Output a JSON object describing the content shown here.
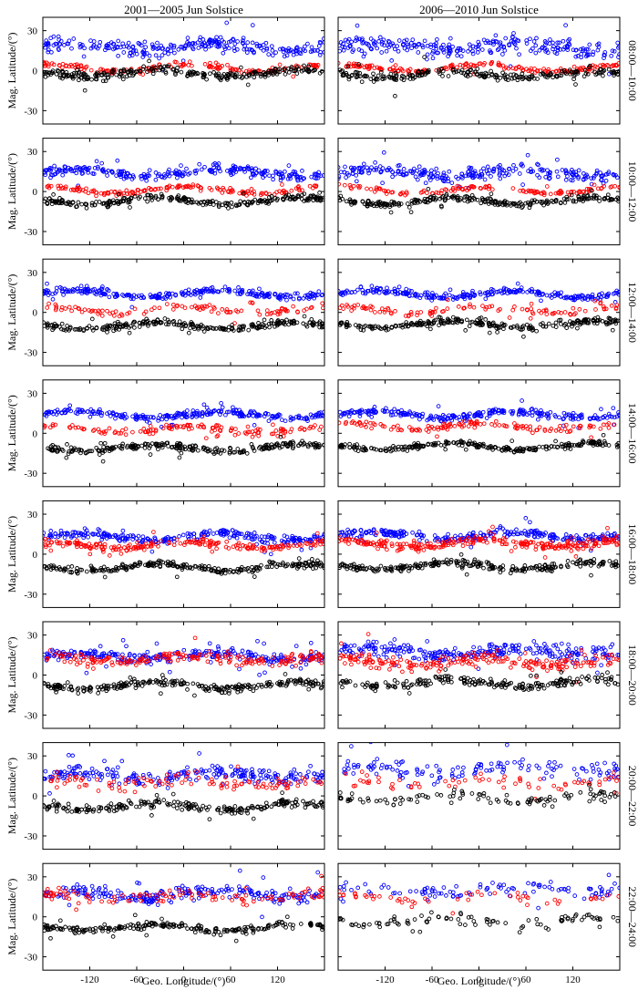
{
  "figure": {
    "column_titles": [
      "2001—2005 Jun Solstice",
      "2006—2010 Jun Solstice"
    ],
    "row_labels": [
      "08:00—10:00",
      "10:00—12:00",
      "12:00—14:00",
      "14:00—16:00",
      "16:00—18:00",
      "18:00—20:00",
      "20:00—22:00",
      "22:00—24:00"
    ],
    "ylabel": "Mag. Latitude/(°)",
    "xlabel": "Geo. Longitude/(°)",
    "xticks": [
      -120,
      -60,
      0,
      60,
      120
    ],
    "yticks": [
      30,
      0,
      -30
    ]
  },
  "chart_data": {
    "type": "scatter",
    "layout": "8 rows x 2 columns",
    "xlabel": "Geo. Longitude/(°)",
    "ylabel": "Mag. Latitude/(°)",
    "xlim": [
      -180,
      180
    ],
    "ylim": [
      -40,
      40
    ],
    "xticks": [
      -120,
      -60,
      0,
      60,
      120
    ],
    "yticks": [
      -30,
      0,
      30
    ],
    "marker": "open circle",
    "series_colors": [
      "#0000ff",
      "#ff0000",
      "#000000"
    ],
    "panels": [
      {
        "column": "2001—2005 Jun Solstice",
        "row": "08:00—10:00",
        "bands": [
          {
            "color": "#0000ff",
            "center": 18,
            "spread": 9,
            "density": 1.0
          },
          {
            "color": "#ff0000",
            "center": 2,
            "spread": 3,
            "density": 0.6
          },
          {
            "color": "#000000",
            "center": -2,
            "spread": 5,
            "density": 1.0
          }
        ]
      },
      {
        "column": "2006—2010 Jun Solstice",
        "row": "08:00—10:00",
        "bands": [
          {
            "color": "#0000ff",
            "center": 18,
            "spread": 11,
            "density": 1.0
          },
          {
            "color": "#ff0000",
            "center": 2,
            "spread": 3,
            "density": 0.7
          },
          {
            "color": "#000000",
            "center": -3,
            "spread": 5,
            "density": 0.9
          }
        ]
      },
      {
        "column": "2001—2005 Jun Solstice",
        "row": "10:00—12:00",
        "bands": [
          {
            "color": "#0000ff",
            "center": 14,
            "spread": 6,
            "density": 1.0
          },
          {
            "color": "#ff0000",
            "center": 1,
            "spread": 3,
            "density": 0.6
          },
          {
            "color": "#000000",
            "center": -7,
            "spread": 4,
            "density": 1.0
          }
        ]
      },
      {
        "column": "2006—2010 Jun Solstice",
        "row": "10:00—12:00",
        "bands": [
          {
            "color": "#0000ff",
            "center": 14,
            "spread": 7,
            "density": 1.0
          },
          {
            "color": "#ff0000",
            "center": 1,
            "spread": 3,
            "density": 0.5
          },
          {
            "color": "#000000",
            "center": -7,
            "spread": 4,
            "density": 1.0
          }
        ]
      },
      {
        "column": "2001—2005 Jun Solstice",
        "row": "12:00—14:00",
        "bands": [
          {
            "color": "#0000ff",
            "center": 14,
            "spread": 4,
            "density": 1.0
          },
          {
            "color": "#ff0000",
            "center": 2,
            "spread": 4,
            "density": 0.4
          },
          {
            "color": "#000000",
            "center": -10,
            "spread": 4,
            "density": 1.0
          }
        ]
      },
      {
        "column": "2006—2010 Jun Solstice",
        "row": "12:00—14:00",
        "bands": [
          {
            "color": "#0000ff",
            "center": 14,
            "spread": 4,
            "density": 1.0
          },
          {
            "color": "#ff0000",
            "center": 2,
            "spread": 4,
            "density": 0.4
          },
          {
            "color": "#000000",
            "center": -9,
            "spread": 4,
            "density": 1.0
          }
        ]
      },
      {
        "column": "2001—2005 Jun Solstice",
        "row": "14:00—16:00",
        "bands": [
          {
            "color": "#0000ff",
            "center": 14,
            "spread": 4,
            "density": 1.0
          },
          {
            "color": "#ff0000",
            "center": 3,
            "spread": 4,
            "density": 0.5
          },
          {
            "color": "#000000",
            "center": -11,
            "spread": 4,
            "density": 1.0
          }
        ]
      },
      {
        "column": "2006—2010 Jun Solstice",
        "row": "14:00—16:00",
        "bands": [
          {
            "color": "#0000ff",
            "center": 14,
            "spread": 4,
            "density": 1.0
          },
          {
            "color": "#ff0000",
            "center": 5,
            "spread": 4,
            "density": 0.5
          },
          {
            "color": "#000000",
            "center": -10,
            "spread": 3,
            "density": 1.0
          }
        ]
      },
      {
        "column": "2001—2005 Jun Solstice",
        "row": "16:00—18:00",
        "bands": [
          {
            "color": "#0000ff",
            "center": 13,
            "spread": 5,
            "density": 1.0
          },
          {
            "color": "#ff0000",
            "center": 7,
            "spread": 5,
            "density": 0.8
          },
          {
            "color": "#000000",
            "center": -10,
            "spread": 4,
            "density": 1.0
          }
        ]
      },
      {
        "column": "2006—2010 Jun Solstice",
        "row": "16:00—18:00",
        "bands": [
          {
            "color": "#0000ff",
            "center": 14,
            "spread": 5,
            "density": 1.0
          },
          {
            "color": "#ff0000",
            "center": 8,
            "spread": 5,
            "density": 1.0
          },
          {
            "color": "#000000",
            "center": -9,
            "spread": 4,
            "density": 1.0
          }
        ]
      },
      {
        "column": "2001—2005 Jun Solstice",
        "row": "18:00—20:00",
        "bands": [
          {
            "color": "#0000ff",
            "center": 14,
            "spread": 6,
            "density": 1.0
          },
          {
            "color": "#ff0000",
            "center": 12,
            "spread": 7,
            "density": 0.7
          },
          {
            "color": "#000000",
            "center": -8,
            "spread": 4,
            "density": 1.0
          }
        ]
      },
      {
        "column": "2006—2010 Jun Solstice",
        "row": "18:00—20:00",
        "bands": [
          {
            "color": "#0000ff",
            "center": 17,
            "spread": 9,
            "density": 1.0
          },
          {
            "color": "#ff0000",
            "center": 10,
            "spread": 8,
            "density": 0.8
          },
          {
            "color": "#000000",
            "center": -6,
            "spread": 5,
            "density": 0.8
          }
        ]
      },
      {
        "column": "2001—2005 Jun Solstice",
        "row": "20:00—22:00",
        "bands": [
          {
            "color": "#0000ff",
            "center": 15,
            "spread": 8,
            "density": 0.9
          },
          {
            "color": "#ff0000",
            "center": 10,
            "spread": 8,
            "density": 0.4
          },
          {
            "color": "#000000",
            "center": -8,
            "spread": 5,
            "density": 0.9
          }
        ]
      },
      {
        "column": "2006—2010 Jun Solstice",
        "row": "20:00—22:00",
        "bands": [
          {
            "color": "#0000ff",
            "center": 20,
            "spread": 10,
            "density": 0.5
          },
          {
            "color": "#ff0000",
            "center": 10,
            "spread": 8,
            "density": 0.25
          },
          {
            "color": "#000000",
            "center": -2,
            "spread": 7,
            "density": 0.4
          }
        ]
      },
      {
        "column": "2001—2005 Jun Solstice",
        "row": "22:00—24:00",
        "bands": [
          {
            "color": "#0000ff",
            "center": 17,
            "spread": 8,
            "density": 0.9
          },
          {
            "color": "#ff0000",
            "center": 15,
            "spread": 6,
            "density": 0.4
          },
          {
            "color": "#000000",
            "center": -8,
            "spread": 4,
            "density": 0.9
          }
        ]
      },
      {
        "column": "2006—2010 Jun Solstice",
        "row": "22:00—24:00",
        "bands": [
          {
            "color": "#0000ff",
            "center": 20,
            "spread": 9,
            "density": 0.4
          },
          {
            "color": "#ff0000",
            "center": 14,
            "spread": 6,
            "density": 0.2
          },
          {
            "color": "#000000",
            "center": -3,
            "spread": 6,
            "density": 0.35
          }
        ]
      }
    ]
  }
}
